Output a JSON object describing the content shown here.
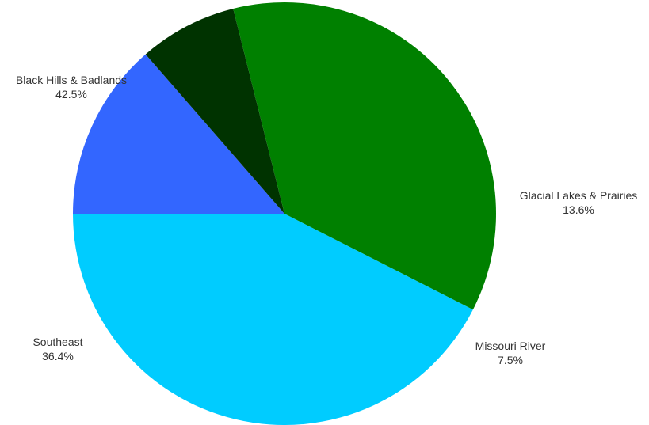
{
  "chart_data": {
    "type": "pie",
    "title": "",
    "slices": [
      {
        "label": "Black Hills & Badlands",
        "value": 42.5,
        "display": "42.5%",
        "color": "#00CCFF"
      },
      {
        "label": "Glacial Lakes & Prairies",
        "value": 13.6,
        "display": "13.6%",
        "color": "#3366FF"
      },
      {
        "label": "Missouri River",
        "value": 7.5,
        "display": "7.5%",
        "color": "#003300"
      },
      {
        "label": "Southeast",
        "value": 36.4,
        "display": "36.4%",
        "color": "#008000"
      }
    ]
  }
}
